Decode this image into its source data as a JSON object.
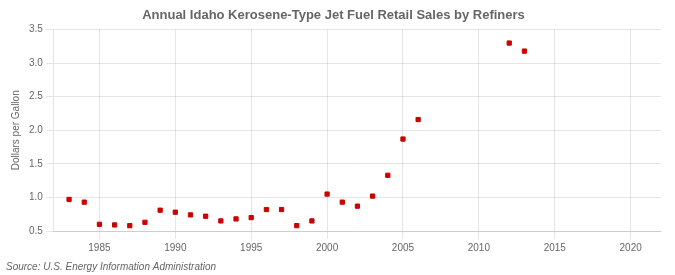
{
  "chart_data": {
    "type": "scatter",
    "title": "Annual Idaho Kerosene-Type Jet Fuel Retail Sales by Refiners",
    "y_label": "Dollars per Gallon",
    "annotations": [
      "Source: U.S. Energy Information Administration"
    ],
    "x": [
      1983,
      1984,
      1985,
      1986,
      1987,
      1988,
      1989,
      1990,
      1991,
      1992,
      1993,
      1994,
      1995,
      1996,
      1997,
      1998,
      1999,
      2000,
      2001,
      2002,
      2003,
      2004,
      2005,
      2006,
      2012,
      2013
    ],
    "values": [
      0.97,
      0.93,
      0.6,
      0.59,
      0.58,
      0.63,
      0.81,
      0.78,
      0.74,
      0.72,
      0.65,
      0.68,
      0.7,
      0.82,
      0.82,
      0.58,
      0.65,
      1.05,
      0.93,
      0.87,
      1.02,
      1.33,
      1.87,
      2.16,
      3.3,
      3.18
    ],
    "color": "#cc0000",
    "marker": "square",
    "xlim": [
      1982,
      2022
    ],
    "xticks": [
      1985,
      1990,
      1995,
      2000,
      2005,
      2010,
      2015,
      2020
    ],
    "ylim": [
      0.5,
      3.5
    ],
    "yticks": [
      0.5,
      {
        "value": 1.0,
        "label": "1.0"
      },
      1.5,
      {
        "value": 2.0,
        "label": "2.0"
      },
      2.5,
      {
        "value": 3.0,
        "label": "3.0"
      },
      3.5
    ],
    "grid": true
  }
}
